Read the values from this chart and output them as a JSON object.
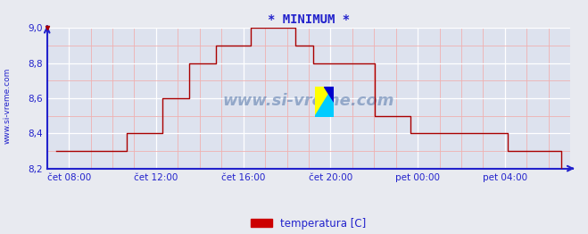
{
  "title": "* MINIMUM *",
  "side_label": "www.si-vreme.com",
  "legend_label": "temperatura [C]",
  "legend_color": "#cc0000",
  "bg_color": "#e8eaf0",
  "plot_bg": "#dde2ee",
  "grid_major_color": "#ffffff",
  "grid_minor_color": "#f0b0b0",
  "line_color": "#aa0000",
  "axis_color": "#2222cc",
  "tick_color": "#2222cc",
  "title_color": "#2222cc",
  "watermark": "www.si-vreme.com",
  "watermark_color": "#5577aa",
  "ylim": [
    8.2,
    9.0
  ],
  "yticks": [
    8.2,
    8.4,
    8.6,
    8.8,
    9.0
  ],
  "xtick_labels": [
    "čet 08:00",
    "čet 12:00",
    "čet 16:00",
    "čet 20:00",
    "pet 00:00",
    "pet 04:00"
  ],
  "xtick_pos": [
    60,
    300,
    540,
    780,
    1020,
    1260
  ],
  "xmin": 0,
  "xmax": 1440,
  "data_start_min": 25,
  "data_end_min": 1415,
  "temp_values": [
    8.3,
    8.3,
    8.3,
    8.3,
    8.3,
    8.3,
    8.3,
    8.3,
    8.4,
    8.4,
    8.4,
    8.4,
    8.6,
    8.6,
    8.6,
    8.8,
    8.8,
    8.8,
    8.9,
    8.9,
    8.9,
    8.9,
    9.0,
    9.0,
    9.0,
    9.0,
    9.0,
    8.9,
    8.9,
    8.8,
    8.8,
    8.8,
    8.8,
    8.8,
    8.8,
    8.8,
    8.5,
    8.5,
    8.5,
    8.5,
    8.4,
    8.4,
    8.4,
    8.4,
    8.4,
    8.4,
    8.4,
    8.4,
    8.4,
    8.4,
    8.4,
    8.3,
    8.3,
    8.3,
    8.3,
    8.3,
    8.3,
    8.2
  ]
}
